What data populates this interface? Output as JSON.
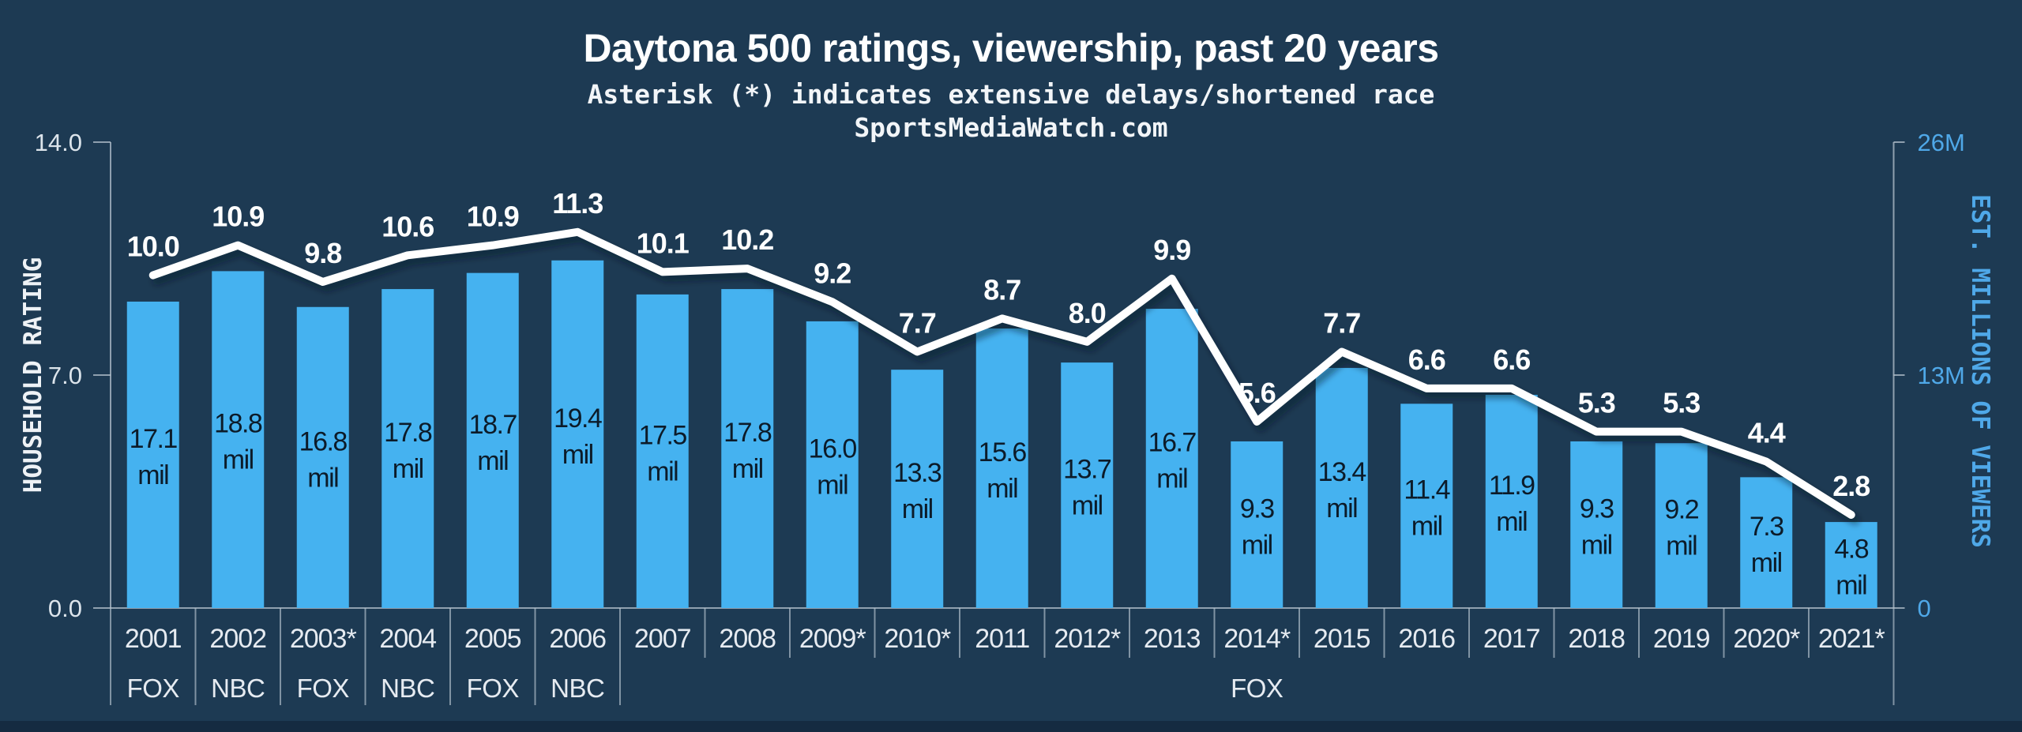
{
  "colors": {
    "background": "#1d3a53",
    "footer_strip": "#152b41",
    "bar_fill": "#45b2f0",
    "line_stroke": "#ffffff",
    "line_shadow": "rgba(8,20,34,0.45)",
    "accent_blue": "#4fa8e8",
    "light_text": "#e6ebf1",
    "bar_label_text": "#0c1b29"
  },
  "chart_data": {
    "type": "bar",
    "title": "Daytona 500 ratings, viewership, past 20 years",
    "subtitle": "Asterisk (*) indicates extensive delays/shortened race",
    "source": "SportsMediaWatch.com",
    "ylabel_left": "HOUSEHOLD RATING",
    "ylabel_right": "EST. MILLIONS OF VIEWERS",
    "ylim_left": [
      0,
      14
    ],
    "ylim_right": [
      0,
      26
    ],
    "grid": false,
    "legend": "none",
    "categories": [
      "2001",
      "2002",
      "2003*",
      "2004",
      "2005",
      "2006",
      "2007",
      "2008",
      "2009*",
      "2010*",
      "2011",
      "2012*",
      "2013",
      "2014*",
      "2015",
      "2016",
      "2017",
      "2018",
      "2019",
      "2020*",
      "2021*"
    ],
    "yticks_left": [
      {
        "label": "14.0",
        "value": 14
      },
      {
        "label": "7.0",
        "value": 7
      },
      {
        "label": "0.0",
        "value": 0
      }
    ],
    "yticks_right": [
      {
        "label": "26M",
        "value": 26
      },
      {
        "label": "13M",
        "value": 13
      },
      {
        "label": "0",
        "value": 0
      }
    ],
    "series": [
      {
        "name": "Est. millions of viewers",
        "type": "bar",
        "axis": "right",
        "label_suffix": "mil",
        "values": [
          17.1,
          18.8,
          16.8,
          17.8,
          18.7,
          19.4,
          17.5,
          17.8,
          16.0,
          13.3,
          15.6,
          13.7,
          16.7,
          9.3,
          13.4,
          11.4,
          11.9,
          9.3,
          9.2,
          7.3,
          4.8
        ]
      },
      {
        "name": "Household rating",
        "type": "line",
        "axis": "left",
        "values": [
          10.0,
          10.9,
          9.8,
          10.6,
          10.9,
          11.3,
          10.1,
          10.2,
          9.2,
          7.7,
          8.7,
          8.0,
          9.9,
          5.6,
          7.7,
          6.6,
          6.6,
          5.3,
          5.3,
          4.4,
          2.8
        ]
      }
    ],
    "networks": [
      {
        "label": "FOX",
        "span": [
          0,
          0
        ]
      },
      {
        "label": "NBC",
        "span": [
          1,
          1
        ]
      },
      {
        "label": "FOX",
        "span": [
          2,
          2
        ]
      },
      {
        "label": "NBC",
        "span": [
          3,
          3
        ]
      },
      {
        "label": "FOX",
        "span": [
          4,
          4
        ]
      },
      {
        "label": "NBC",
        "span": [
          5,
          5
        ]
      },
      {
        "label": "FOX",
        "span": [
          6,
          20
        ]
      }
    ]
  }
}
